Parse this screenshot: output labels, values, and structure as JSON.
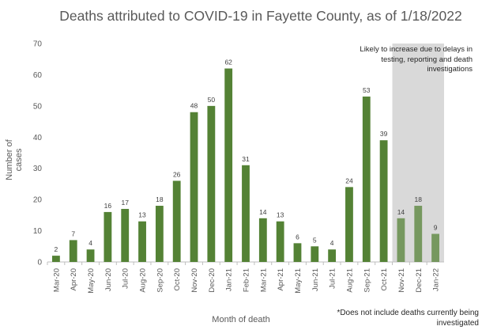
{
  "chart_data": {
    "type": "bar",
    "title": "Deaths attributed to COVID-19 in Fayette County, as of 1/18/2022",
    "xlabel": "Month of death",
    "ylabel": "Number of cases",
    "ylim": [
      0,
      70
    ],
    "yticks": [
      0,
      10,
      20,
      30,
      40,
      50,
      60,
      70
    ],
    "grid": false,
    "categories": [
      "Mar-20",
      "Apr-20",
      "May-20",
      "Jun-20",
      "Jul-20",
      "Aug-20",
      "Sep-20",
      "Oct-20",
      "Nov-20",
      "Dec-20",
      "Jan-21",
      "Feb-21",
      "Mar-21",
      "Apr-21",
      "May-21",
      "Jun-21",
      "Jul-21",
      "Aug-21",
      "Sep-21",
      "Oct-21",
      "Nov-21",
      "Dec-21",
      "Jan-22"
    ],
    "values": [
      2,
      7,
      4,
      16,
      17,
      13,
      18,
      26,
      48,
      50,
      62,
      31,
      14,
      13,
      6,
      5,
      4,
      24,
      53,
      39,
      14,
      18,
      9
    ],
    "bar_color": "#548235",
    "shaded_region": {
      "categories": [
        "Nov-21",
        "Dec-21",
        "Jan-22"
      ],
      "color": "#d9d9d9",
      "label": "Likely to increase due to delays in testing, reporting and death investigations"
    },
    "footnote": "*Does not include deaths currently being investigated"
  }
}
